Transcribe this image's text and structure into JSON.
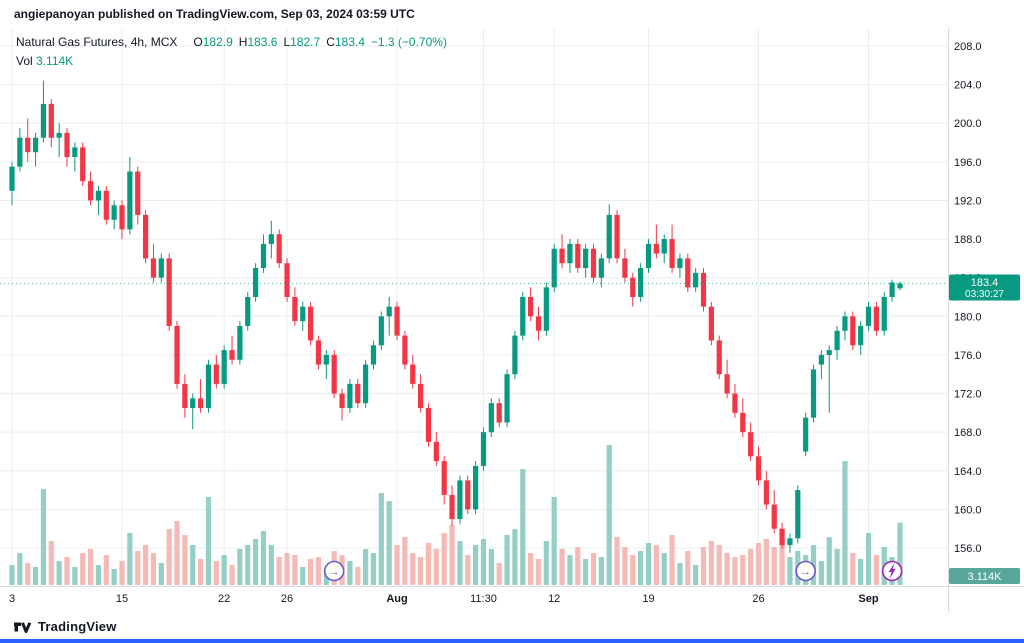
{
  "header": {
    "text": "angiepanoyan published on TradingView.com, Sep 03, 2024 03:59 UTC"
  },
  "legend": {
    "title": "Natural Gas Futures, 4h, MCX",
    "ohlc": [
      {
        "label": "O",
        "value": "182.9"
      },
      {
        "label": "H",
        "value": "183.6"
      },
      {
        "label": "L",
        "value": "182.7"
      },
      {
        "label": "C",
        "value": "183.4"
      }
    ],
    "change": "−1.3 (−0.70%)",
    "vol_label": "Vol",
    "vol_value": "3.114K"
  },
  "price_badge": {
    "price": "183.4",
    "countdown": "03:30:27"
  },
  "volume_badge": "3.114K",
  "footer": {
    "brand": "TradingView"
  },
  "colors": {
    "up": "#089981",
    "down": "#f23645",
    "vol_up": "#94cec5",
    "vol_down": "#f5b9b6",
    "grid": "#e9edf2",
    "axis_line": "#d6d9de",
    "axis_text": "#131722",
    "badge_price": "#089981",
    "badge_volume": "#56a69a",
    "event_arrow": "#6a5acd",
    "event_lightning": "#9c27b0",
    "accent_bar": "#2962ff"
  },
  "events": [
    {
      "i": 41,
      "type": "arrow"
    },
    {
      "i": 101,
      "type": "arrow"
    },
    {
      "i": 112,
      "type": "lightning"
    }
  ],
  "chart_data": {
    "type": "candlestick",
    "symbol": "Natural Gas Futures",
    "interval": "4h",
    "exchange": "MCX",
    "last": {
      "open": 182.9,
      "high": 183.6,
      "low": 182.7,
      "close": 183.4,
      "change": -1.3,
      "change_pct": -0.7,
      "volume_k": 3.114
    },
    "y_axis": {
      "max_tick": 208.0,
      "min_tick": 156.0,
      "tick_step": 4.0,
      "labels": [
        "208.0",
        "204.0",
        "200.0",
        "196.0",
        "192.0",
        "188.0",
        "184.0",
        "180.0",
        "176.0",
        "172.0",
        "168.0",
        "164.0",
        "160.0",
        "156.0"
      ]
    },
    "time_ticks": [
      {
        "i": 0,
        "label": "3",
        "bold": false
      },
      {
        "i": 14,
        "label": "15",
        "bold": false
      },
      {
        "i": 27,
        "label": "22",
        "bold": false
      },
      {
        "i": 35,
        "label": "26",
        "bold": false
      },
      {
        "i": 49,
        "label": "Aug",
        "bold": true
      },
      {
        "i": 60,
        "label": "11:30",
        "bold": false
      },
      {
        "i": 69,
        "label": "12",
        "bold": false
      },
      {
        "i": 81,
        "label": "19",
        "bold": false
      },
      {
        "i": 95,
        "label": "26",
        "bold": false
      },
      {
        "i": 109,
        "label": "Sep",
        "bold": true
      }
    ],
    "candles": [
      [
        193.0,
        196.0,
        191.5,
        195.5,
        1.0
      ],
      [
        195.5,
        199.5,
        195.0,
        198.5,
        1.6
      ],
      [
        198.5,
        200.5,
        196.0,
        197.0,
        1.1
      ],
      [
        197.0,
        199.0,
        195.5,
        198.5,
        0.9
      ],
      [
        198.5,
        204.4,
        198.0,
        202.0,
        4.8
      ],
      [
        202.0,
        202.5,
        197.5,
        198.5,
        2.2
      ],
      [
        198.5,
        200.0,
        196.5,
        199.0,
        1.2
      ],
      [
        199.0,
        199.5,
        195.5,
        196.5,
        1.4
      ],
      [
        196.5,
        198.0,
        195.0,
        197.5,
        0.9
      ],
      [
        197.5,
        198.0,
        193.5,
        194.0,
        1.6
      ],
      [
        194.0,
        195.0,
        191.5,
        192.0,
        1.8
      ],
      [
        192.0,
        193.5,
        190.5,
        193.0,
        1.0
      ],
      [
        193.0,
        193.5,
        189.5,
        190.0,
        1.5
      ],
      [
        190.0,
        192.0,
        189.0,
        191.5,
        0.8
      ],
      [
        191.5,
        192.0,
        188.0,
        189.0,
        1.2
      ],
      [
        189.0,
        196.5,
        188.5,
        195.0,
        2.6
      ],
      [
        195.0,
        195.5,
        189.5,
        190.5,
        1.7
      ],
      [
        190.5,
        191.0,
        185.5,
        186.0,
        2.0
      ],
      [
        186.0,
        187.5,
        183.5,
        184.0,
        1.6
      ],
      [
        184.0,
        186.5,
        183.5,
        186.0,
        1.1
      ],
      [
        186.0,
        186.5,
        178.5,
        179.0,
        2.8
      ],
      [
        179.0,
        179.5,
        172.5,
        173.0,
        3.2
      ],
      [
        173.0,
        174.0,
        169.5,
        170.5,
        2.5
      ],
      [
        170.5,
        172.0,
        168.3,
        171.5,
        2.0
      ],
      [
        171.5,
        173.5,
        170.0,
        170.5,
        1.3
      ],
      [
        170.5,
        175.5,
        170.0,
        175.0,
        4.4
      ],
      [
        175.0,
        176.0,
        172.5,
        173.0,
        1.2
      ],
      [
        173.0,
        177.0,
        172.5,
        176.5,
        1.5
      ],
      [
        176.5,
        178.0,
        175.0,
        175.5,
        1.0
      ],
      [
        175.5,
        179.5,
        175.0,
        179.0,
        1.8
      ],
      [
        179.0,
        182.5,
        178.5,
        182.0,
        2.0
      ],
      [
        182.0,
        185.5,
        181.5,
        185.0,
        2.3
      ],
      [
        185.0,
        188.5,
        184.5,
        187.5,
        2.7
      ],
      [
        187.5,
        189.9,
        186.0,
        188.5,
        2.0
      ],
      [
        188.5,
        189.0,
        185.0,
        185.5,
        1.4
      ],
      [
        185.5,
        186.0,
        181.5,
        182.0,
        1.6
      ],
      [
        182.0,
        183.0,
        179.0,
        179.5,
        1.5
      ],
      [
        179.5,
        181.5,
        178.5,
        181.0,
        0.9
      ],
      [
        181.0,
        181.5,
        177.0,
        177.5,
        1.3
      ],
      [
        177.5,
        178.0,
        174.5,
        175.0,
        1.4
      ],
      [
        175.0,
        176.5,
        173.5,
        176.0,
        0.8
      ],
      [
        176.0,
        176.5,
        171.5,
        172.0,
        1.7
      ],
      [
        172.0,
        172.5,
        169.2,
        170.5,
        1.5
      ],
      [
        170.5,
        173.5,
        170.0,
        173.0,
        1.2
      ],
      [
        173.0,
        173.5,
        170.5,
        171.0,
        0.9
      ],
      [
        171.0,
        175.5,
        170.5,
        175.0,
        1.8
      ],
      [
        175.0,
        177.5,
        174.5,
        177.0,
        1.6
      ],
      [
        177.0,
        180.5,
        176.5,
        180.0,
        4.6
      ],
      [
        180.0,
        182.0,
        178.0,
        181.0,
        4.2
      ],
      [
        181.0,
        181.5,
        177.5,
        178.0,
        2.0
      ],
      [
        178.0,
        178.5,
        174.5,
        175.0,
        2.4
      ],
      [
        175.0,
        176.0,
        172.5,
        173.0,
        1.6
      ],
      [
        173.0,
        174.0,
        170.0,
        170.5,
        1.4
      ],
      [
        170.5,
        171.0,
        166.5,
        167.0,
        2.1
      ],
      [
        167.0,
        168.0,
        164.5,
        165.0,
        1.8
      ],
      [
        165.0,
        165.5,
        160.5,
        161.5,
        2.6
      ],
      [
        161.5,
        162.5,
        158.3,
        159.0,
        3.0
      ],
      [
        159.0,
        163.5,
        158.5,
        163.0,
        2.2
      ],
      [
        163.0,
        163.5,
        159.5,
        160.0,
        1.5
      ],
      [
        160.0,
        165.0,
        159.5,
        164.5,
        2.0
      ],
      [
        164.5,
        168.5,
        164.0,
        168.0,
        2.3
      ],
      [
        168.0,
        171.5,
        167.5,
        171.0,
        1.8
      ],
      [
        171.0,
        171.5,
        168.5,
        169.0,
        1.1
      ],
      [
        169.0,
        174.5,
        168.5,
        174.0,
        2.5
      ],
      [
        174.0,
        178.5,
        173.5,
        178.0,
        2.8
      ],
      [
        178.0,
        182.5,
        177.5,
        182.0,
        5.8
      ],
      [
        182.0,
        183.0,
        179.5,
        180.0,
        1.6
      ],
      [
        180.0,
        181.0,
        177.5,
        178.5,
        1.3
      ],
      [
        178.5,
        183.5,
        178.0,
        183.0,
        2.2
      ],
      [
        183.0,
        187.5,
        182.5,
        187.0,
        4.4
      ],
      [
        187.0,
        188.5,
        185.0,
        185.5,
        1.8
      ],
      [
        185.5,
        188.0,
        184.5,
        187.5,
        1.5
      ],
      [
        187.5,
        188.0,
        184.5,
        185.0,
        1.9
      ],
      [
        185.0,
        187.5,
        184.0,
        187.0,
        1.3
      ],
      [
        187.0,
        187.5,
        183.5,
        184.0,
        1.6
      ],
      [
        184.0,
        186.5,
        183.0,
        186.0,
        1.4
      ],
      [
        186.0,
        191.6,
        185.5,
        190.5,
        7.0
      ],
      [
        190.5,
        191.0,
        185.5,
        186.0,
        2.4
      ],
      [
        186.0,
        187.0,
        183.5,
        184.0,
        1.9
      ],
      [
        184.0,
        184.5,
        181.0,
        182.0,
        1.5
      ],
      [
        182.0,
        185.5,
        181.5,
        185.0,
        1.7
      ],
      [
        185.0,
        188.0,
        184.5,
        187.5,
        2.1
      ],
      [
        187.5,
        189.5,
        186.0,
        186.5,
        2.0
      ],
      [
        186.5,
        188.5,
        185.5,
        188.0,
        1.6
      ],
      [
        188.0,
        189.5,
        184.5,
        185.0,
        2.5
      ],
      [
        185.0,
        186.5,
        184.0,
        186.0,
        1.1
      ],
      [
        186.0,
        186.5,
        182.5,
        183.0,
        1.7
      ],
      [
        183.0,
        185.0,
        182.5,
        184.5,
        1.0
      ],
      [
        184.5,
        185.0,
        180.5,
        181.0,
        1.9
      ],
      [
        181.0,
        181.5,
        177.0,
        177.5,
        2.2
      ],
      [
        177.5,
        178.0,
        173.5,
        174.0,
        2.0
      ],
      [
        174.0,
        175.5,
        171.5,
        172.0,
        1.6
      ],
      [
        172.0,
        173.0,
        169.5,
        170.0,
        1.4
      ],
      [
        170.0,
        171.5,
        167.5,
        168.0,
        1.5
      ],
      [
        168.0,
        169.0,
        165.0,
        165.5,
        1.8
      ],
      [
        165.5,
        166.5,
        162.5,
        163.0,
        2.1
      ],
      [
        163.0,
        164.0,
        160.0,
        160.5,
        2.3
      ],
      [
        160.5,
        162.0,
        157.5,
        158.0,
        1.9
      ],
      [
        158.0,
        158.6,
        155.9,
        156.3,
        2.7
      ],
      [
        156.3,
        157.5,
        155.5,
        157.0,
        1.4
      ],
      [
        157.0,
        162.5,
        156.5,
        162.0,
        1.7
      ],
      [
        166.0,
        170.0,
        165.5,
        169.5,
        1.5
      ],
      [
        169.5,
        175.0,
        169.0,
        174.5,
        2.0
      ],
      [
        175.0,
        176.5,
        173.5,
        176.0,
        1.2
      ],
      [
        176.0,
        177.0,
        170.0,
        176.5,
        2.4
      ],
      [
        176.5,
        179.0,
        175.5,
        178.5,
        1.8
      ],
      [
        178.5,
        180.5,
        177.5,
        180.0,
        6.2
      ],
      [
        180.0,
        180.5,
        176.5,
        177.0,
        1.6
      ],
      [
        177.0,
        179.5,
        176.0,
        179.0,
        1.3
      ],
      [
        179.0,
        181.5,
        178.5,
        181.0,
        2.6
      ],
      [
        181.0,
        181.5,
        178.0,
        178.5,
        1.5
      ],
      [
        178.5,
        182.5,
        178.0,
        182.0,
        1.9
      ],
      [
        182.0,
        183.8,
        181.5,
        183.5,
        1.4
      ],
      [
        182.9,
        183.6,
        182.7,
        183.4,
        3.114
      ]
    ]
  }
}
